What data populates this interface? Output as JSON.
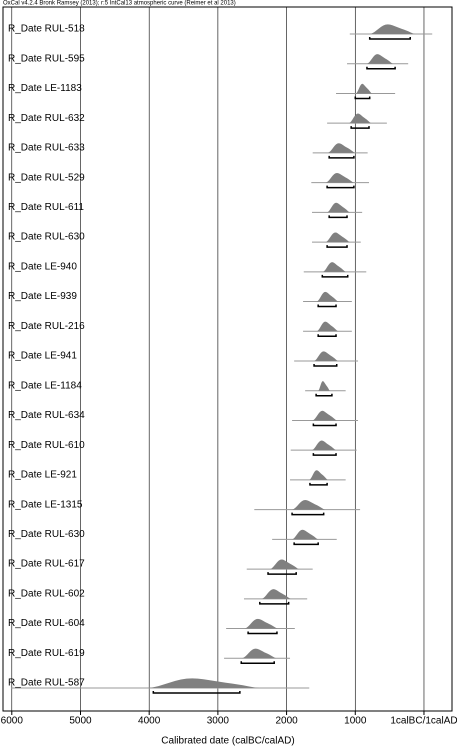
{
  "chart_data": {
    "type": "oxcal-multiplot",
    "title": "OxCal v4.2.4 Bronk Ramsey (2013); r:5 IntCal13 atmospheric curve (Reimer et al 2013)",
    "x_label": "Calibrated date (calBC/calAD)",
    "xlim": [
      6128,
      -408
    ],
    "xticks": [
      6000,
      5000,
      4000,
      3000,
      2000,
      1000,
      {
        "value": 0,
        "label": "1calBC/1calAD"
      }
    ],
    "grid": true,
    "color": "#808080",
    "rows": [
      {
        "name": "R_Date RUL-518",
        "range": [
          1080,
          -120
        ],
        "dist": [
          790,
          130
        ],
        "hpd": [
          790,
          200
        ]
      },
      {
        "name": "R_Date RUL-595",
        "range": [
          1120,
          230
        ],
        "dist": [
          830,
          450
        ],
        "hpd": [
          830,
          420
        ]
      },
      {
        "name": "R_Date LE-1183",
        "range": [
          1280,
          420
        ],
        "dist": [
          990,
          760
        ],
        "hpd": [
          1000,
          790
        ]
      },
      {
        "name": "R_Date RUL-632",
        "range": [
          1410,
          540
        ],
        "dist": [
          1090,
          770
        ],
        "hpd": [
          1060,
          800
        ]
      },
      {
        "name": "R_Date RUL-633",
        "range": [
          1620,
          820
        ],
        "dist": [
          1400,
          1000
        ],
        "hpd": [
          1380,
          1020
        ]
      },
      {
        "name": "R_Date RUL-529",
        "range": [
          1640,
          800
        ],
        "dist": [
          1430,
          1020
        ],
        "hpd": [
          1410,
          1020
        ]
      },
      {
        "name": "R_Date RUL-611",
        "range": [
          1630,
          900
        ],
        "dist": [
          1410,
          1080
        ],
        "hpd": [
          1380,
          1120
        ]
      },
      {
        "name": "R_Date RUL-630",
        "range": [
          1630,
          920
        ],
        "dist": [
          1430,
          1080
        ],
        "hpd": [
          1410,
          1120
        ]
      },
      {
        "name": "R_Date LE-940",
        "range": [
          1750,
          840
        ],
        "dist": [
          1470,
          1140
        ],
        "hpd": [
          1480,
          1110
        ]
      },
      {
        "name": "R_Date LE-939",
        "range": [
          1760,
          1050
        ],
        "dist": [
          1560,
          1250
        ],
        "hpd": [
          1540,
          1280
        ]
      },
      {
        "name": "R_Date RUL-216",
        "range": [
          1760,
          1050
        ],
        "dist": [
          1560,
          1250
        ],
        "hpd": [
          1540,
          1280
        ]
      },
      {
        "name": "R_Date LE-941",
        "range": [
          1890,
          960
        ],
        "dist": [
          1600,
          1250
        ],
        "hpd": [
          1600,
          1270
        ]
      },
      {
        "name": "R_Date LE-1184",
        "range": [
          1730,
          1140
        ],
        "dist": [
          1540,
          1370
        ],
        "hpd": [
          1570,
          1340
        ]
      },
      {
        "name": "R_Date RUL-634",
        "range": [
          1920,
          960
        ],
        "dist": [
          1620,
          1270
        ],
        "hpd": [
          1610,
          1280
        ]
      },
      {
        "name": "R_Date RUL-610",
        "range": [
          1940,
          980
        ],
        "dist": [
          1630,
          1280
        ],
        "hpd": [
          1610,
          1280
        ]
      },
      {
        "name": "R_Date LE-921",
        "range": [
          1950,
          1140
        ],
        "dist": [
          1670,
          1400
        ],
        "hpd": [
          1660,
          1410
        ]
      },
      {
        "name": "R_Date LE-1315",
        "range": [
          2470,
          930
        ],
        "dist": [
          1920,
          1440
        ],
        "hpd": [
          1920,
          1460
        ]
      },
      {
        "name": "R_Date RUL-630",
        "range": [
          2210,
          1270
        ],
        "dist": [
          1920,
          1540
        ],
        "hpd": [
          1890,
          1540
        ]
      },
      {
        "name": "R_Date RUL-617",
        "range": [
          2580,
          1620
        ],
        "dist": [
          2240,
          1820
        ],
        "hpd": [
          2270,
          1860
        ]
      },
      {
        "name": "R_Date RUL-602",
        "range": [
          2620,
          1700
        ],
        "dist": [
          2360,
          1940
        ],
        "hpd": [
          2390,
          1970
        ]
      },
      {
        "name": "R_Date RUL-604",
        "range": [
          2880,
          1880
        ],
        "dist": [
          2610,
          2130
        ],
        "hpd": [
          2560,
          2140
        ]
      },
      {
        "name": "R_Date RUL-619",
        "range": [
          2910,
          1950
        ],
        "dist": [
          2650,
          2150
        ],
        "hpd": [
          2660,
          2180
        ]
      },
      {
        "name": "R_Date RUL-587",
        "range": [
          6000,
          1670
        ],
        "dist": [
          4030,
          2390
        ],
        "hpd": [
          3940,
          2680
        ]
      }
    ]
  }
}
